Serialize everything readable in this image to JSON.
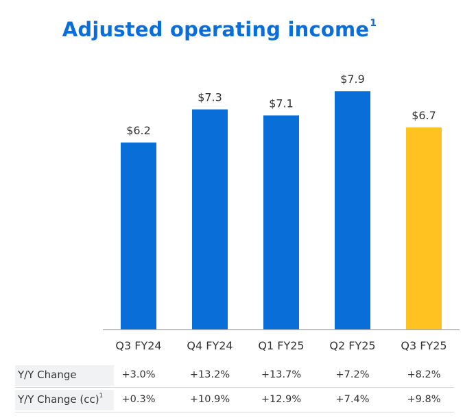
{
  "chart_data": {
    "type": "bar",
    "title": "Adjusted operating income",
    "title_footnote": "1",
    "categories": [
      "Q3 FY24",
      "Q4 FY24",
      "Q1 FY25",
      "Q2 FY25",
      "Q3 FY25"
    ],
    "values": [
      6.2,
      7.3,
      7.1,
      7.9,
      6.7
    ],
    "value_labels": [
      "$6.2",
      "$7.3",
      "$7.1",
      "$7.9",
      "$6.7"
    ],
    "bar_colors": [
      "#0A6ED8",
      "#0A6ED8",
      "#0A6ED8",
      "#0A6ED8",
      "#FFC220"
    ],
    "ylim": [
      0,
      8.7
    ],
    "grid": false,
    "xlabel": "",
    "ylabel": ""
  },
  "table": {
    "rows": [
      {
        "label": "Y/Y Change",
        "footnote": "",
        "values": [
          "+3.0%",
          "+13.2%",
          "+13.7%",
          "+7.2%",
          "+8.2%"
        ]
      },
      {
        "label": "Y/Y Change (cc)",
        "footnote": "1",
        "values": [
          "+0.3%",
          "+10.9%",
          "+12.9%",
          "+7.4%",
          "+9.8%"
        ]
      }
    ]
  },
  "colors": {
    "accent": "#0A6ED8",
    "highlight": "#FFC220",
    "axis": "#9a9a9a",
    "text": "#333333"
  }
}
